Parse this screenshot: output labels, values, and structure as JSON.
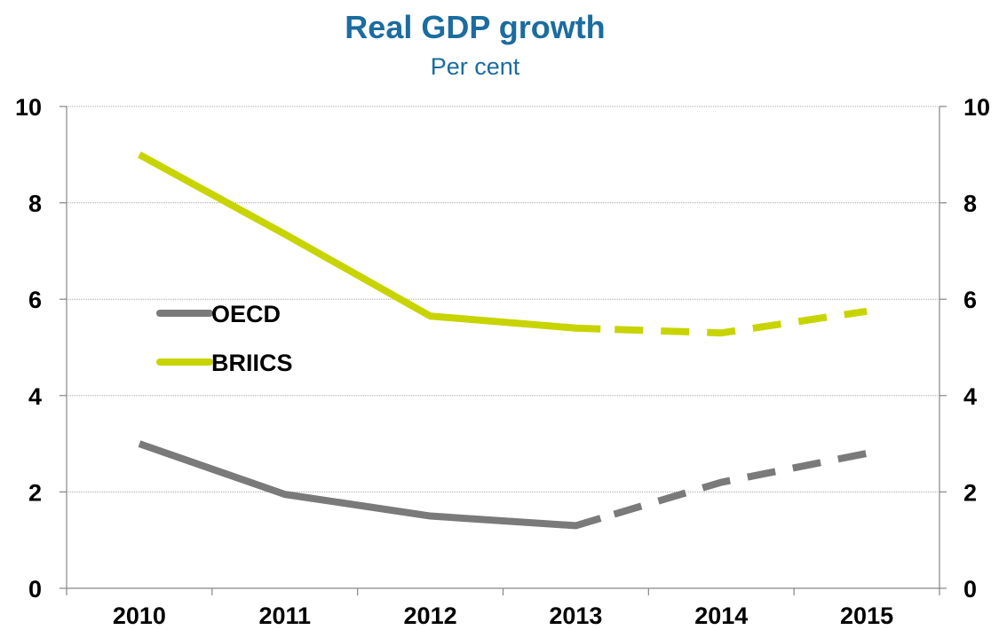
{
  "chart_data": {
    "type": "line",
    "title": "Real GDP growth",
    "subtitle": "Per cent",
    "title_color": "#1b6ca0",
    "x": [
      "2010",
      "2011",
      "2012",
      "2013",
      "2014",
      "2015"
    ],
    "xlabel": "",
    "ylabel": "",
    "ylim": [
      0,
      10
    ],
    "y_ticks": [
      "0",
      "2",
      "4",
      "6",
      "8",
      "10"
    ],
    "y2_ticks": [
      "0",
      "2",
      "4",
      "6",
      "8",
      "10"
    ],
    "grid": true,
    "legend_position": "center-left",
    "series": [
      {
        "name": "OECD",
        "color": "#7a7a7a",
        "values": [
          3.0,
          1.95,
          1.5,
          1.3,
          2.2,
          2.8
        ],
        "solid_until_index": 3
      },
      {
        "name": "BRIICS",
        "color": "#c8d400",
        "values": [
          9.0,
          7.35,
          5.65,
          5.4,
          5.3,
          5.75
        ],
        "solid_until_index": 3
      }
    ],
    "note": "Solid line through 2013; dashed line for 2014 and 2015"
  }
}
